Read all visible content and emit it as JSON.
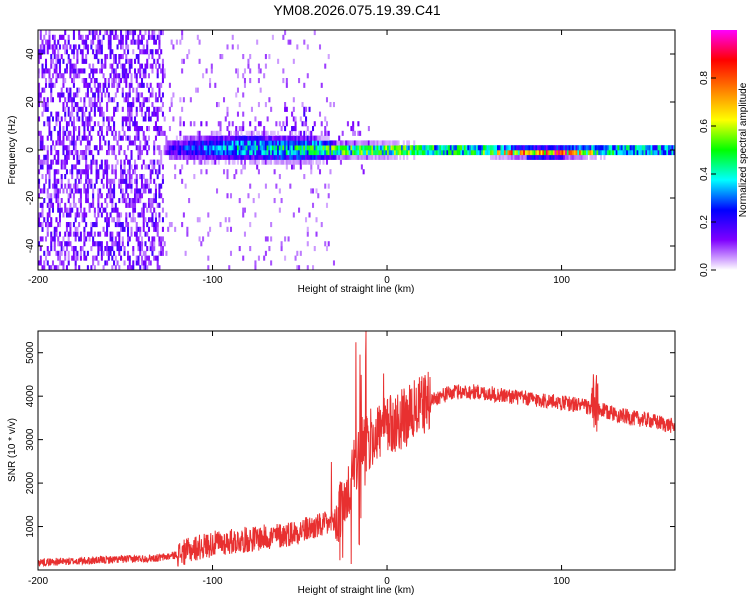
{
  "title": "YM08.2026.075.19.39.C41",
  "chart_data": [
    {
      "type": "heatmap",
      "name": "spectrogram",
      "xlabel": "Height of straight line (km)",
      "ylabel": "Frequency (Hz)",
      "xlim": [
        -200,
        165
      ],
      "ylim": [
        -50,
        50
      ],
      "xticks": [
        -200,
        -100,
        0,
        100
      ],
      "xtick_labels": [
        "-200",
        "-100",
        "0",
        "100"
      ],
      "yticks": [
        -40,
        -20,
        0,
        20,
        40
      ],
      "ytick_labels": [
        "-40",
        "-20",
        "0",
        "20",
        "40"
      ],
      "colorbar": {
        "label": "Normalized spectral amplitude",
        "range": [
          0,
          1
        ],
        "ticks": [
          0,
          0.2,
          0.4,
          0.6,
          0.8
        ],
        "tick_labels": [
          "0.0",
          "0.2",
          "0.4",
          "0.6",
          "0.8"
        ],
        "colors": [
          "#ffffff",
          "#7f00ff",
          "#0000ff",
          "#00ffff",
          "#00ff00",
          "#ffff00",
          "#ff8000",
          "#ff0000",
          "#ff00ff"
        ]
      },
      "band_profile": {
        "x": [
          -200,
          -130,
          -125,
          -100,
          -80,
          -60,
          -45,
          -30,
          -10,
          0,
          20,
          50,
          80,
          100,
          130,
          165
        ],
        "center_hz": [
          0,
          0,
          0.5,
          1,
          1,
          0.5,
          0.5,
          0,
          0,
          0,
          0,
          0,
          -1,
          -1,
          0,
          0
        ],
        "halfwidth_hz": [
          0,
          0,
          4,
          5,
          5,
          5,
          5,
          3,
          2.5,
          2.5,
          2,
          2,
          2,
          2,
          2,
          2
        ],
        "amplitude": [
          0.1,
          0.1,
          0.2,
          0.35,
          0.4,
          0.45,
          0.45,
          0.55,
          0.6,
          0.65,
          0.6,
          0.6,
          0.75,
          0.8,
          0.55,
          0.45
        ]
      }
    },
    {
      "type": "line",
      "name": "snr",
      "xlabel": "Height of straight line (km)",
      "ylabel": "SNR (10 * v/v)",
      "xlim": [
        -200,
        165
      ],
      "ylim": [
        0,
        5500
      ],
      "xticks": [
        -200,
        -100,
        0,
        100
      ],
      "xtick_labels": [
        "-200",
        "-100",
        "0",
        "100"
      ],
      "yticks": [
        1000,
        2000,
        3000,
        4000,
        5000
      ],
      "ytick_labels": [
        "1000",
        "2000",
        "3000",
        "4000",
        "5000"
      ],
      "series": [
        {
          "name": "SNR",
          "color": "#e83030",
          "x": [
            -200,
            -180,
            -150,
            -130,
            -120,
            -110,
            -100,
            -90,
            -80,
            -70,
            -60,
            -50,
            -40,
            -30,
            -25,
            -20,
            -15,
            -10,
            -5,
            0,
            10,
            20,
            30,
            40,
            50,
            60,
            70,
            80,
            90,
            100,
            110,
            120,
            130,
            140,
            150,
            160,
            165
          ],
          "y": [
            180,
            200,
            250,
            280,
            350,
            500,
            600,
            650,
            700,
            750,
            800,
            900,
            1000,
            1100,
            1500,
            2200,
            2800,
            3000,
            3200,
            3300,
            3500,
            3800,
            4000,
            4100,
            4100,
            4050,
            4000,
            3950,
            3900,
            3850,
            3800,
            3700,
            3600,
            3500,
            3450,
            3350,
            3300
          ]
        }
      ]
    }
  ]
}
